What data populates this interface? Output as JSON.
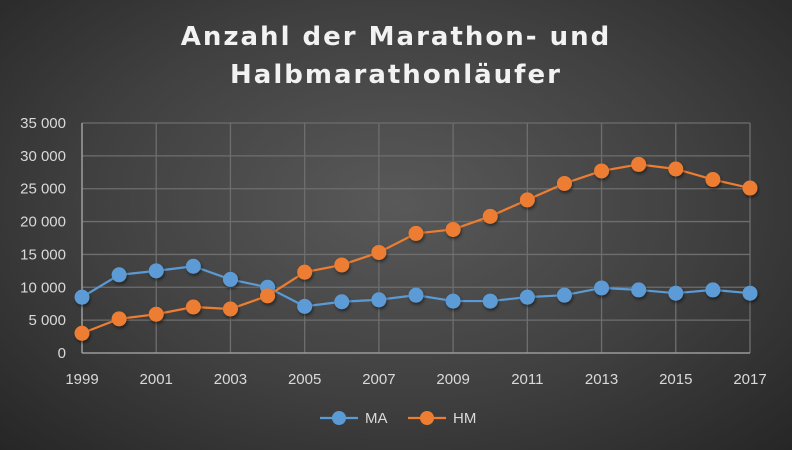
{
  "chart_data": {
    "type": "line",
    "title_line1": "Anzahl der Marathon- und",
    "title_line2": "Halbmarathonläufer",
    "xlabel": "",
    "ylabel": "",
    "x": [
      1999,
      2000,
      2001,
      2002,
      2003,
      2004,
      2005,
      2006,
      2007,
      2008,
      2009,
      2010,
      2011,
      2012,
      2013,
      2014,
      2015,
      2016,
      2017
    ],
    "x_tick_labels": [
      "1999",
      "2001",
      "2003",
      "2005",
      "2007",
      "2009",
      "2011",
      "2013",
      "2015",
      "2017"
    ],
    "y_tick_labels": [
      "0",
      "5 000",
      "10 000",
      "15 000",
      "20 000",
      "25 000",
      "30 000",
      "35 000"
    ],
    "ylim": [
      0,
      35000
    ],
    "grid": true,
    "legend": "bottom",
    "series": [
      {
        "name": "MA",
        "color": "#5b9bd5",
        "values": [
          8500,
          11900,
          12500,
          13200,
          11200,
          10000,
          7100,
          7800,
          8100,
          8800,
          7900,
          7900,
          8500,
          8800,
          9900,
          9600,
          9100,
          9600,
          9100
        ]
      },
      {
        "name": "HM",
        "color": "#ed7d31",
        "values": [
          3000,
          5200,
          5900,
          7000,
          6700,
          8700,
          12300,
          13400,
          15300,
          18200,
          18800,
          20800,
          23300,
          25800,
          27700,
          28700,
          28000,
          26400,
          25100
        ]
      }
    ]
  }
}
